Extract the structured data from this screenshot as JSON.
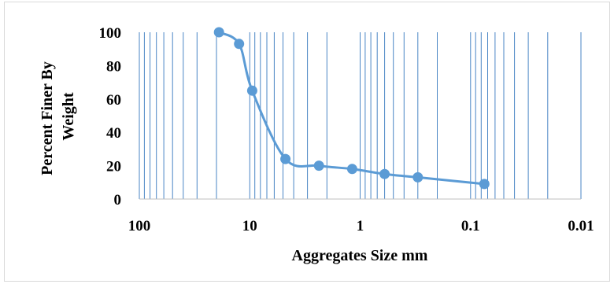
{
  "chart_data": {
    "type": "line",
    "xlabel": "Aggregates Size mm",
    "ylabel_lines": [
      "Percent Finer By",
      "Weight"
    ],
    "x_scale": "log",
    "x_reversed": true,
    "xlim": [
      100,
      0.01
    ],
    "ylim": [
      0,
      100
    ],
    "grid": {
      "vertical": true,
      "horizontal": false
    },
    "legend": "none",
    "x_ticks": [
      {
        "value": 100,
        "label": "100"
      },
      {
        "value": 10,
        "label": "10"
      },
      {
        "value": 1,
        "label": "1"
      },
      {
        "value": 0.1,
        "label": "0.1"
      },
      {
        "value": 0.01,
        "label": "0.01"
      }
    ],
    "y_ticks": [
      {
        "value": 0,
        "label": "0"
      },
      {
        "value": 20,
        "label": "20"
      },
      {
        "value": 40,
        "label": "40"
      },
      {
        "value": 60,
        "label": "60"
      },
      {
        "value": 80,
        "label": "80"
      },
      {
        "value": 100,
        "label": "100"
      }
    ],
    "series": [
      {
        "color": "#5b9bd5",
        "x": [
          19,
          12.5,
          9.5,
          4.75,
          2.36,
          1.18,
          0.6,
          0.3,
          0.075
        ],
        "y": [
          100,
          93,
          65,
          24,
          20,
          18,
          15,
          13,
          9
        ]
      }
    ]
  }
}
